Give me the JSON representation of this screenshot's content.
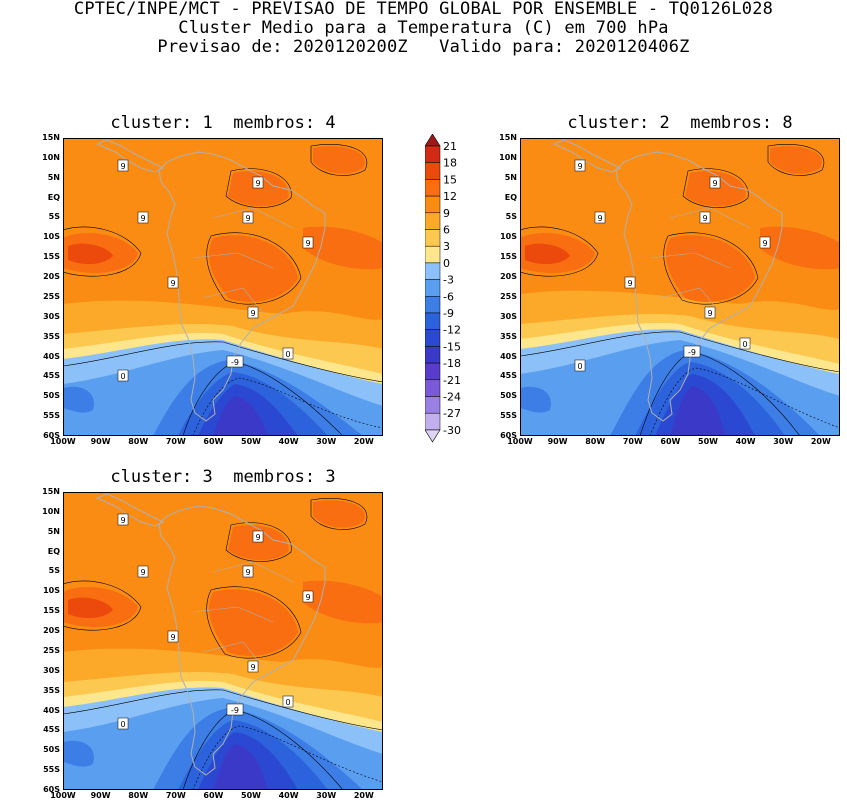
{
  "header": {
    "line1": "CPTEC/INPE/MCT - PREVISAO DE TEMPO GLOBAL POR ENSEMBLE - TQ0126L028",
    "line2": "Cluster Medio para a Temperatura (C) em 700 hPa",
    "line3": "Previsao de: 2020120200Z   Valido para: 2020120406Z"
  },
  "panels": [
    {
      "title": "cluster: 1  membros: 4"
    },
    {
      "title": "cluster: 2  membros: 8"
    },
    {
      "title": "cluster: 3  membros: 3"
    }
  ],
  "axes": {
    "lat_labels": [
      "15N",
      "10N",
      "5N",
      "EQ",
      "5S",
      "10S",
      "15S",
      "20S",
      "25S",
      "30S",
      "35S",
      "40S",
      "45S",
      "50S",
      "55S",
      "60S"
    ],
    "lon_labels": [
      "100W",
      "90W",
      "80W",
      "70W",
      "60W",
      "50W",
      "40W",
      "30W",
      "20W"
    ]
  },
  "contour_labels": [
    "-9",
    "0",
    "9"
  ],
  "colorbar": {
    "labels": [
      "21",
      "18",
      "15",
      "12",
      "9",
      "6",
      "3",
      "0",
      "-3",
      "-6",
      "-9",
      "-12",
      "-15",
      "-18",
      "-21",
      "-24",
      "-27",
      "-30"
    ],
    "colors": [
      "#a01818",
      "#d22a14",
      "#ec4a0c",
      "#f86e10",
      "#fa8c14",
      "#fca828",
      "#fcc850",
      "#fde68c",
      "#8cc0f8",
      "#5a9ef0",
      "#3c7ee6",
      "#2c62dc",
      "#2a48d2",
      "#3b3ac8",
      "#5a3ccc",
      "#7a5ad8",
      "#9a80e4",
      "#c2b0ee",
      "#ddd4f6"
    ]
  }
}
